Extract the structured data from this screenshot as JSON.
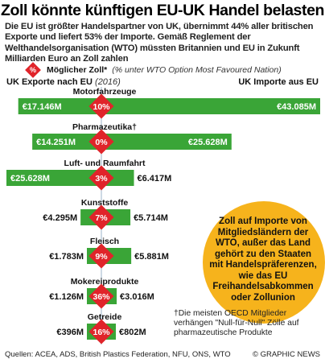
{
  "title": "Zoll könnte künftigen EU-UK Handel belasten",
  "intro": "Die EU ist größter Handelspartner von UK, übernimmt 44% aller britischen Exporte und liefert 53% der Importe. Gemäß Reglement der Welthandelsorganisation (WTO) müssten Britannien und EU in Zukunft Milliarden Euro an Zoll zahlen",
  "legend": {
    "symbol": "%",
    "label": "Möglicher Zoll*",
    "note": "(% unter WTO Option Most Favoured Nation)"
  },
  "header_left": "UK Exporte nach EU",
  "header_left_year": "(2016)",
  "header_right": "UK Importe aus EU",
  "callout": "Zoll auf Importe von Mitgliedsländern der WTO, außer das Land gehört zu den Staaten mit Handelspräferenzen, wie das EU Freihandelsabkommen oder Zollunion",
  "footnote": "†Die meisten OECD Mitglieder verhängen \"Null-für-Null\" Zölle auf pharmazeutische Produkte",
  "source": "Quellen: ACEA, ADS, British Plastics Federation, NFU, ONS, WTO",
  "credit": "© GRAPHIC NEWS",
  "colors": {
    "bar": "#3aa537",
    "bar_light": "#7cc576",
    "badge": "#e0242a",
    "callout": "#f6b31c"
  },
  "chart_data": {
    "type": "bar",
    "unit": "M €",
    "categories": [
      "Motorfahrzeuge",
      "Pharmazeutika†",
      "Luft- und Raumfahrt",
      "Kunststoffe",
      "Fleisch",
      "Mokereiprodukte",
      "Getreide"
    ],
    "tariffs": [
      "10%",
      "0%",
      "3%",
      "7%",
      "9%",
      "36%",
      "16%"
    ],
    "series": [
      {
        "name": "UK Exporte nach EU",
        "values": [
          17146,
          14251,
          25628,
          4295,
          1783,
          1126,
          396
        ],
        "labels": [
          "€17.146M",
          "€14.251M",
          "€25.628M",
          "€4.295M",
          "€1.783M",
          "€1.126M",
          "€396M"
        ]
      },
      {
        "name": "UK Importe aus EU",
        "values": [
          43085,
          25628,
          6417,
          5714,
          5881,
          3016,
          802
        ],
        "labels": [
          "€43.085M",
          "€25.628M",
          "€6.417M",
          "€5.714M",
          "€5.881M",
          "€3.016M",
          "€802M"
        ]
      }
    ]
  }
}
